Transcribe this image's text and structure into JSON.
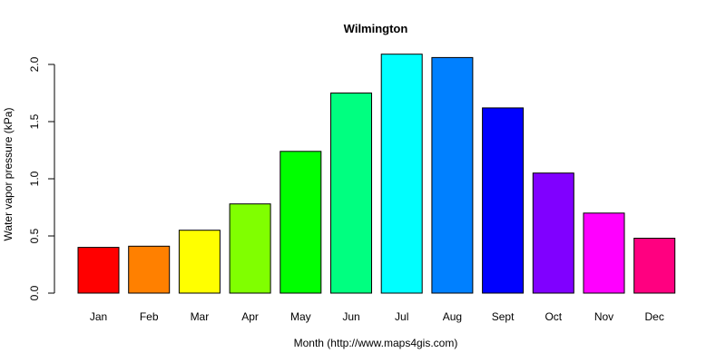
{
  "chart_data": {
    "type": "bar",
    "title": "Wilmington",
    "xlabel": "Month (http://www.maps4gis.com)",
    "ylabel": "Water vapor pressure (kPa)",
    "ylim": [
      0,
      2.0
    ],
    "yticks": [
      "0.0",
      "0.5",
      "1.0",
      "1.5",
      "2.0"
    ],
    "categories": [
      "Jan",
      "Feb",
      "Mar",
      "Apr",
      "May",
      "Jun",
      "Jul",
      "Aug",
      "Sept",
      "Oct",
      "Nov",
      "Dec"
    ],
    "values": [
      0.4,
      0.41,
      0.55,
      0.78,
      1.24,
      1.75,
      2.09,
      2.06,
      1.62,
      1.05,
      0.7,
      0.48
    ],
    "colors": [
      "#ff0000",
      "#ff8000",
      "#ffff00",
      "#80ff00",
      "#00ff00",
      "#00ff80",
      "#00ffff",
      "#0080ff",
      "#0000ff",
      "#8000ff",
      "#ff00ff",
      "#ff0080"
    ],
    "grid": false,
    "legend": "none"
  }
}
